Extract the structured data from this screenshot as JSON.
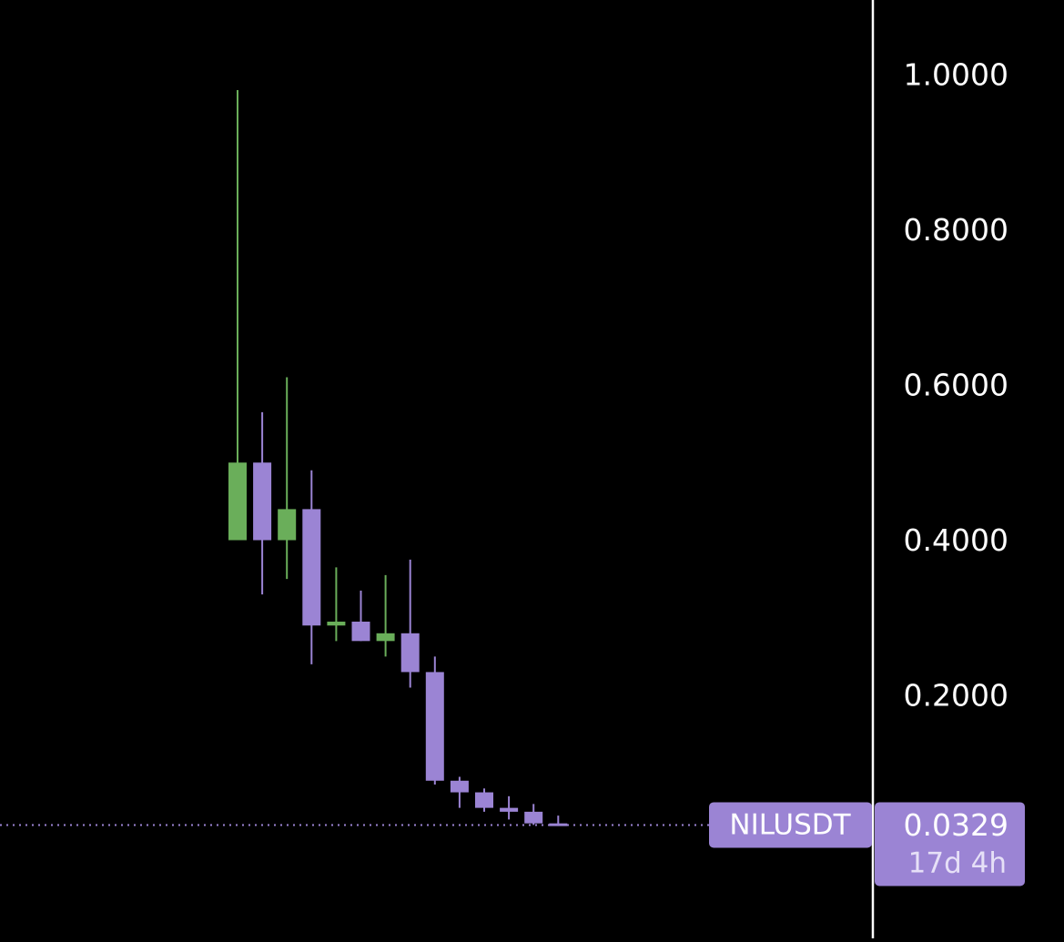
{
  "chart_data": {
    "type": "candlestick",
    "symbol": "NILUSDT",
    "y_axis": {
      "ticks": [
        "1.0000",
        "0.8000",
        "0.6000",
        "0.4000",
        "0.2000"
      ],
      "tick_values": [
        1.0,
        0.8,
        0.6,
        0.4,
        0.2
      ],
      "range": [
        0.0,
        1.0
      ]
    },
    "candles": [
      {
        "open": 0.4,
        "high": 0.98,
        "low": 0.4,
        "close": 0.5,
        "direction": "up"
      },
      {
        "open": 0.5,
        "high": 0.565,
        "low": 0.33,
        "close": 0.4,
        "direction": "down"
      },
      {
        "open": 0.4,
        "high": 0.61,
        "low": 0.35,
        "close": 0.44,
        "direction": "up"
      },
      {
        "open": 0.44,
        "high": 0.49,
        "low": 0.24,
        "close": 0.29,
        "direction": "down"
      },
      {
        "open": 0.29,
        "high": 0.365,
        "low": 0.27,
        "close": 0.295,
        "direction": "up"
      },
      {
        "open": 0.295,
        "high": 0.335,
        "low": 0.27,
        "close": 0.27,
        "direction": "down"
      },
      {
        "open": 0.27,
        "high": 0.355,
        "low": 0.25,
        "close": 0.28,
        "direction": "up"
      },
      {
        "open": 0.28,
        "high": 0.375,
        "low": 0.21,
        "close": 0.23,
        "direction": "down"
      },
      {
        "open": 0.23,
        "high": 0.25,
        "low": 0.085,
        "close": 0.09,
        "direction": "down"
      },
      {
        "open": 0.09,
        "high": 0.095,
        "low": 0.055,
        "close": 0.075,
        "direction": "down"
      },
      {
        "open": 0.075,
        "high": 0.08,
        "low": 0.05,
        "close": 0.055,
        "direction": "down"
      },
      {
        "open": 0.055,
        "high": 0.07,
        "low": 0.04,
        "close": 0.05,
        "direction": "down"
      },
      {
        "open": 0.05,
        "high": 0.06,
        "low": 0.033,
        "close": 0.035,
        "direction": "down"
      },
      {
        "open": 0.035,
        "high": 0.045,
        "low": 0.032,
        "close": 0.0329,
        "direction": "down"
      }
    ],
    "last_price": {
      "value": 0.0329,
      "label": "0.0329",
      "countdown": "17d 4h"
    },
    "colors": {
      "up": "#6aae5a",
      "down": "#9b84d4",
      "background": "#000000",
      "axis_text": "#ffffff",
      "axis_line": "#ffffff",
      "price_tag": "#9b84d4",
      "price_line": "#9b84d4"
    }
  }
}
